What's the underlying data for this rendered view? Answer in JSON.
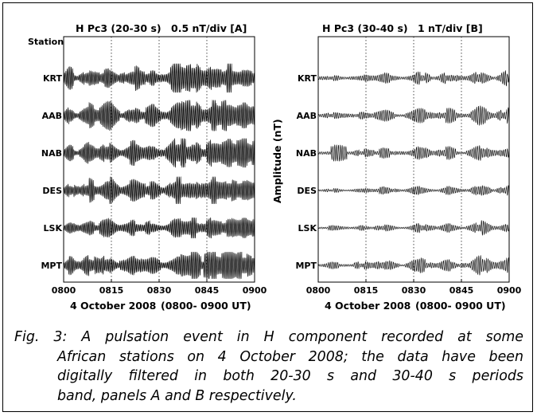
{
  "chart_data": [
    {
      "type": "line",
      "panel": "A",
      "title_left": "H Pc3 (20-30 s)",
      "title_right": "0.5 nT/div  [A]",
      "station_header": "Station",
      "stations": [
        "KRT",
        "AAB",
        "NAB",
        "DES",
        "LSK",
        "MPT"
      ],
      "x_ticks": [
        "0800",
        "0815",
        "0830",
        "0845",
        "0900"
      ],
      "xlim": [
        800,
        900
      ],
      "gridlines_x": [
        "0815",
        "0830",
        "0845"
      ],
      "xlabel_date": "4 October 2008",
      "xlabel_range": "(0800- 0900 UT)",
      "ylabel": ""
    },
    {
      "type": "line",
      "panel": "B",
      "title_left": "H Pc3 (30-40 s)",
      "title_right": "1 nT/div   [B]",
      "station_header": "",
      "stations": [
        "KRT",
        "AAB",
        "NAB",
        "DES",
        "LSK",
        "MPT"
      ],
      "x_ticks": [
        "0800",
        "0815",
        "0830",
        "0845",
        "0900"
      ],
      "xlim": [
        800,
        900
      ],
      "gridlines_x": [
        "0815",
        "0830",
        "0845"
      ],
      "xlabel_date": "4 October 2008",
      "xlabel_range": "(0800- 0900 UT)",
      "ylabel": "Amplitude (nT)"
    }
  ],
  "caption": {
    "line1": "Fig.  3:  A  pulsation  event  in  H  component  recorded  at  some",
    "line2": "African  stations  on  4  October  2008;  the  data  have  been",
    "line3": "digitally  filtered  in  both  20-30  s  and  30-40  s  periods",
    "line4": "band, panels A and B respectively."
  }
}
